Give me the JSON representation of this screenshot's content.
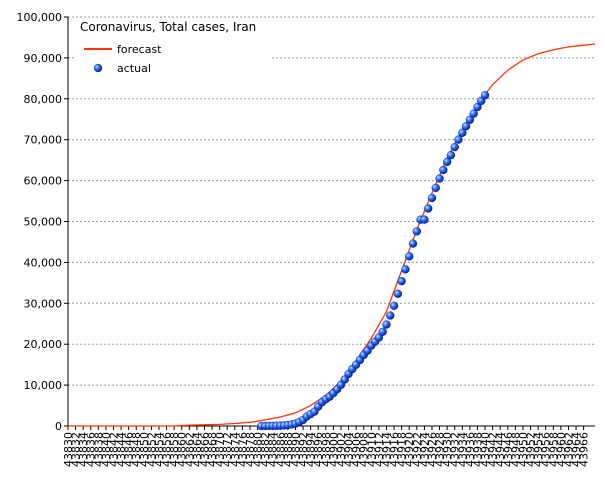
{
  "chart_data": {
    "type": "line",
    "title": "Coronavirus, Total cases, Iran",
    "xlim": [
      43830,
      43969
    ],
    "ylim": [
      0,
      100000
    ],
    "xticks": [
      43830,
      43832,
      43834,
      43836,
      43838,
      43840,
      43842,
      43844,
      43846,
      43848,
      43850,
      43852,
      43854,
      43856,
      43858,
      43860,
      43862,
      43864,
      43866,
      43868,
      43870,
      43872,
      43874,
      43876,
      43878,
      43880,
      43882,
      43884,
      43886,
      43888,
      43890,
      43892,
      43894,
      43896,
      43898,
      43900,
      43902,
      43904,
      43906,
      43908,
      43910,
      43912,
      43914,
      43916,
      43918,
      43920,
      43922,
      43924,
      43926,
      43928,
      43930,
      43932,
      43934,
      43936,
      43938,
      43940,
      43942,
      43944,
      43946,
      43948,
      43950,
      43952,
      43954,
      43956,
      43958,
      43960,
      43962,
      43964,
      43966
    ],
    "yticks": [
      0,
      {
        "value": 10000,
        "label": "10,000"
      },
      {
        "value": 20000,
        "label": "20,000"
      },
      {
        "value": 30000,
        "label": "30,000"
      },
      {
        "value": 40000,
        "label": "40,000"
      },
      {
        "value": 50000,
        "label": "50,000"
      },
      {
        "value": 60000,
        "label": "60,000"
      },
      {
        "value": 70000,
        "label": "70,000"
      },
      {
        "value": 80000,
        "label": "80,000"
      },
      {
        "value": 90000,
        "label": "90,000"
      },
      {
        "value": 100000,
        "label": "100,000"
      }
    ],
    "grid": true,
    "legend": "upper left",
    "series": [
      {
        "name": "forecast",
        "type": "line",
        "color": "#ff3300",
        "x": [
          43830,
          43834,
          43838,
          43842,
          43846,
          43850,
          43854,
          43858,
          43862,
          43866,
          43870,
          43874,
          43878,
          43882,
          43886,
          43890,
          43894,
          43898,
          43902,
          43906,
          43910,
          43914,
          43918,
          43922,
          43926,
          43930,
          43934,
          43938,
          43942,
          43946,
          43950,
          43954,
          43958,
          43962,
          43966,
          43969
        ],
        "values": [
          0,
          0,
          0,
          0,
          0,
          0,
          0,
          0,
          200,
          300,
          400,
          600,
          900,
          1500,
          2200,
          3200,
          5000,
          7500,
          11000,
          16000,
          21500,
          28000,
          38000,
          48000,
          57000,
          65500,
          72500,
          78500,
          83500,
          87000,
          89500,
          91000,
          92000,
          92700,
          93100,
          93400
        ]
      },
      {
        "name": "actual",
        "type": "scatter",
        "color": "#0000cc",
        "x": [
          43881,
          43882,
          43883,
          43884,
          43885,
          43886,
          43887,
          43888,
          43889,
          43890,
          43891,
          43892,
          43893,
          43894,
          43895,
          43896,
          43897,
          43898,
          43899,
          43900,
          43901,
          43902,
          43903,
          43904,
          43905,
          43906,
          43907,
          43908,
          43909,
          43910,
          43911,
          43912,
          43913,
          43914,
          43915,
          43916,
          43917,
          43918,
          43919,
          43920,
          43921,
          43922,
          43923,
          43924,
          43925,
          43926,
          43927,
          43928,
          43929,
          43930,
          43931,
          43932,
          43933,
          43934,
          43935,
          43936,
          43937,
          43938,
          43939,
          43940
        ],
        "values": [
          5,
          18,
          28,
          43,
          61,
          95,
          139,
          245,
          388,
          593,
          978,
          1501,
          2336,
          2922,
          3513,
          4747,
          5823,
          6566,
          7161,
          8042,
          9000,
          10075,
          11364,
          12729,
          13938,
          14991,
          16169,
          17361,
          18407,
          19644,
          20610,
          21638,
          23049,
          24811,
          27017,
          29406,
          32332,
          35408,
          38309,
          41495,
          44605,
          47593,
          50468,
          50468,
          53183,
          55743,
          58226,
          60500,
          62589,
          64586,
          66220,
          68192,
          70029,
          71686,
          73303,
          74877,
          76389,
          77995,
          79494,
          80868
        ]
      }
    ]
  }
}
